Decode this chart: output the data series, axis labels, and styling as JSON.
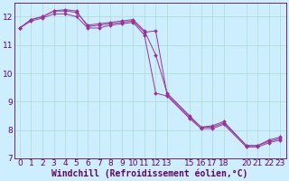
{
  "xlabel": "Windchill (Refroidissement éolien,°C)",
  "background_color": "#cceeff",
  "line_color": "#993399",
  "grid_color": "#aaddcc",
  "xlim": [
    -0.5,
    23.5
  ],
  "ylim": [
    7,
    12.5
  ],
  "xticks": [
    0,
    1,
    2,
    3,
    4,
    5,
    6,
    7,
    8,
    9,
    10,
    11,
    12,
    13,
    15,
    16,
    17,
    18,
    20,
    21,
    22,
    23
  ],
  "yticks": [
    7,
    8,
    9,
    10,
    11,
    12
  ],
  "series": [
    {
      "x": [
        0,
        1,
        2,
        3,
        4,
        5,
        6,
        7,
        8,
        9,
        10,
        11,
        12,
        13,
        15,
        16,
        17,
        18,
        20,
        21,
        22,
        23
      ],
      "y": [
        11.6,
        11.9,
        12.0,
        12.2,
        12.2,
        12.15,
        11.7,
        11.75,
        11.8,
        11.85,
        11.9,
        11.5,
        10.65,
        9.3,
        8.5,
        8.1,
        8.15,
        8.3,
        7.45,
        7.45,
        7.65,
        7.75
      ]
    },
    {
      "x": [
        0,
        1,
        2,
        3,
        4,
        5,
        6,
        7,
        8,
        9,
        10,
        11,
        12,
        13,
        15,
        16,
        17,
        18,
        20,
        21,
        22,
        23
      ],
      "y": [
        11.6,
        11.9,
        12.0,
        12.2,
        12.25,
        12.2,
        11.65,
        11.7,
        11.75,
        11.8,
        11.85,
        11.45,
        11.5,
        9.25,
        8.45,
        8.1,
        8.1,
        8.25,
        7.45,
        7.45,
        7.6,
        7.7
      ]
    },
    {
      "x": [
        0,
        1,
        2,
        3,
        4,
        5,
        6,
        7,
        8,
        9,
        10,
        11,
        12,
        13,
        15,
        16,
        17,
        18,
        20,
        21,
        22,
        23
      ],
      "y": [
        11.6,
        11.85,
        11.95,
        12.1,
        12.1,
        12.0,
        11.6,
        11.6,
        11.7,
        11.75,
        11.8,
        11.35,
        9.3,
        9.2,
        8.4,
        8.05,
        8.05,
        8.2,
        7.4,
        7.4,
        7.55,
        7.65
      ]
    }
  ],
  "marker": "D",
  "markersize": 2.0,
  "linewidth": 0.7,
  "font_color": "#660066",
  "tick_fontsize": 6.5,
  "xlabel_fontsize": 7.0,
  "spine_color": "#660066",
  "spine_linewidth": 0.6
}
